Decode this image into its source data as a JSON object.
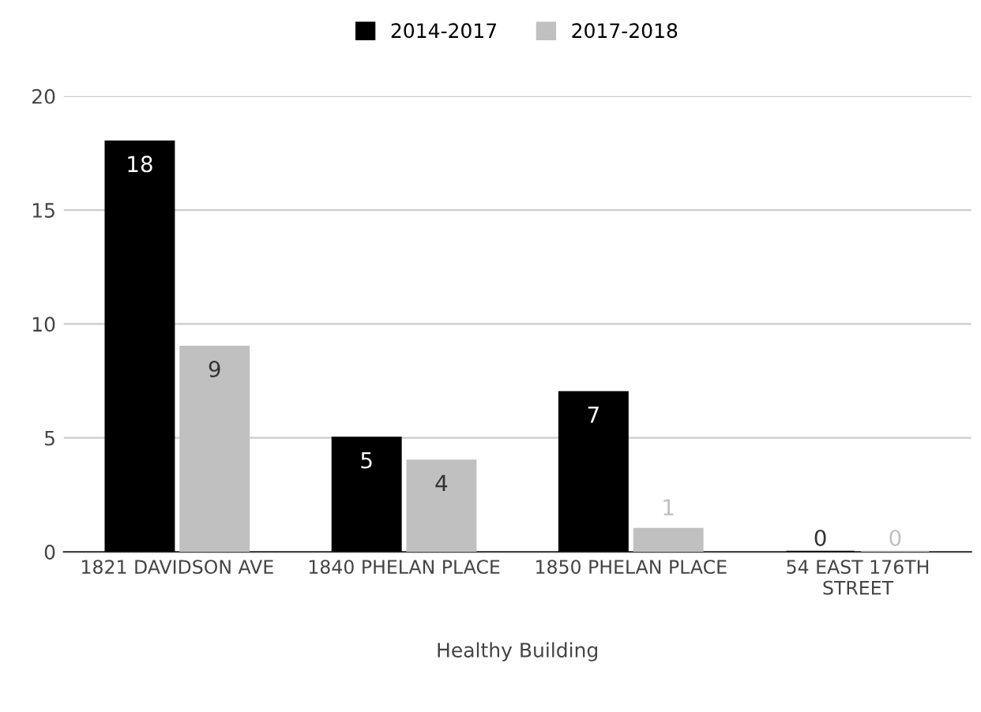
{
  "chart_data": {
    "type": "bar",
    "xlabel": "Healthy Building",
    "categories": [
      "1821 DAVIDSON AVE",
      "1840 PHELAN PLACE",
      "1850 PHELAN PLACE",
      "54 EAST 176TH\nSTREET"
    ],
    "series": [
      {
        "name": "2014-2017",
        "color": "#000000",
        "values": [
          18,
          5,
          7,
          0
        ]
      },
      {
        "name": "2017-2018",
        "color": "#c0c0c0",
        "values": [
          9,
          4,
          1,
          0
        ]
      }
    ],
    "ylim": [
      0,
      20
    ],
    "yticks": [
      0,
      5,
      10,
      15,
      20
    ],
    "grid": "y",
    "legend": "top",
    "data_labels": true
  }
}
